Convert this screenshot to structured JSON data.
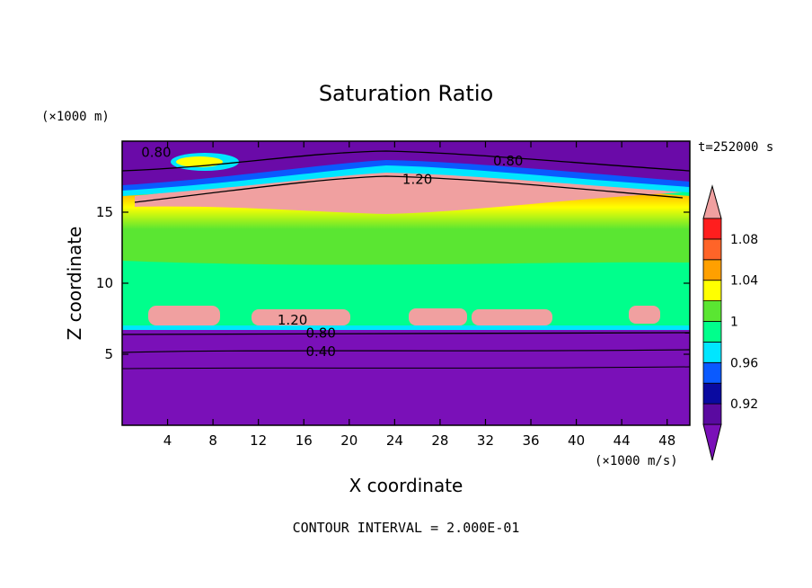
{
  "chart_data": {
    "type": "heatmap",
    "title": "Saturation Ratio",
    "xlabel": "X coordinate",
    "ylabel": "Z coordinate",
    "x_unit": "(×1000 m/s)",
    "y_unit": "(×1000 m)",
    "time_label": "t=252000 s",
    "footer": "CONTOUR INTERVAL = 2.000E-01",
    "xlim": [
      0,
      50
    ],
    "ylim": [
      0,
      20
    ],
    "x_ticks": [
      4,
      8,
      12,
      16,
      20,
      24,
      28,
      32,
      36,
      40,
      44,
      48
    ],
    "y_ticks": [
      5,
      10,
      15
    ],
    "colorbar": {
      "levels": [
        0.9,
        0.92,
        0.94,
        0.96,
        0.98,
        1.0,
        1.02,
        1.04,
        1.06,
        1.08,
        1.1
      ],
      "tick_labels": [
        "0.92",
        "0.96",
        "1",
        "1.04",
        "1.08"
      ],
      "tick_values": [
        0.92,
        0.96,
        1.0,
        1.04,
        1.08
      ],
      "colors": [
        "#5a0aa0",
        "#0a0aa0",
        "#0a5aff",
        "#00e6ff",
        "#00ff8c",
        "#5ae632",
        "#ffff00",
        "#ffa000",
        "#ff6428",
        "#ff1e1e"
      ],
      "under_color": "#7a10b8",
      "over_color": "#f0a0a0"
    },
    "contour_labels": [
      {
        "text": "0.80",
        "x": 3,
        "z": 19.2
      },
      {
        "text": "0.80",
        "x": 34,
        "z": 18.6
      },
      {
        "text": "1.20",
        "x": 26,
        "z": 17.3
      },
      {
        "text": "1.20",
        "x": 15,
        "z": 7.4
      },
      {
        "text": "0.80",
        "x": 17.5,
        "z": 6.5
      },
      {
        "text": "0.40",
        "x": 17.5,
        "z": 5.2
      }
    ]
  }
}
